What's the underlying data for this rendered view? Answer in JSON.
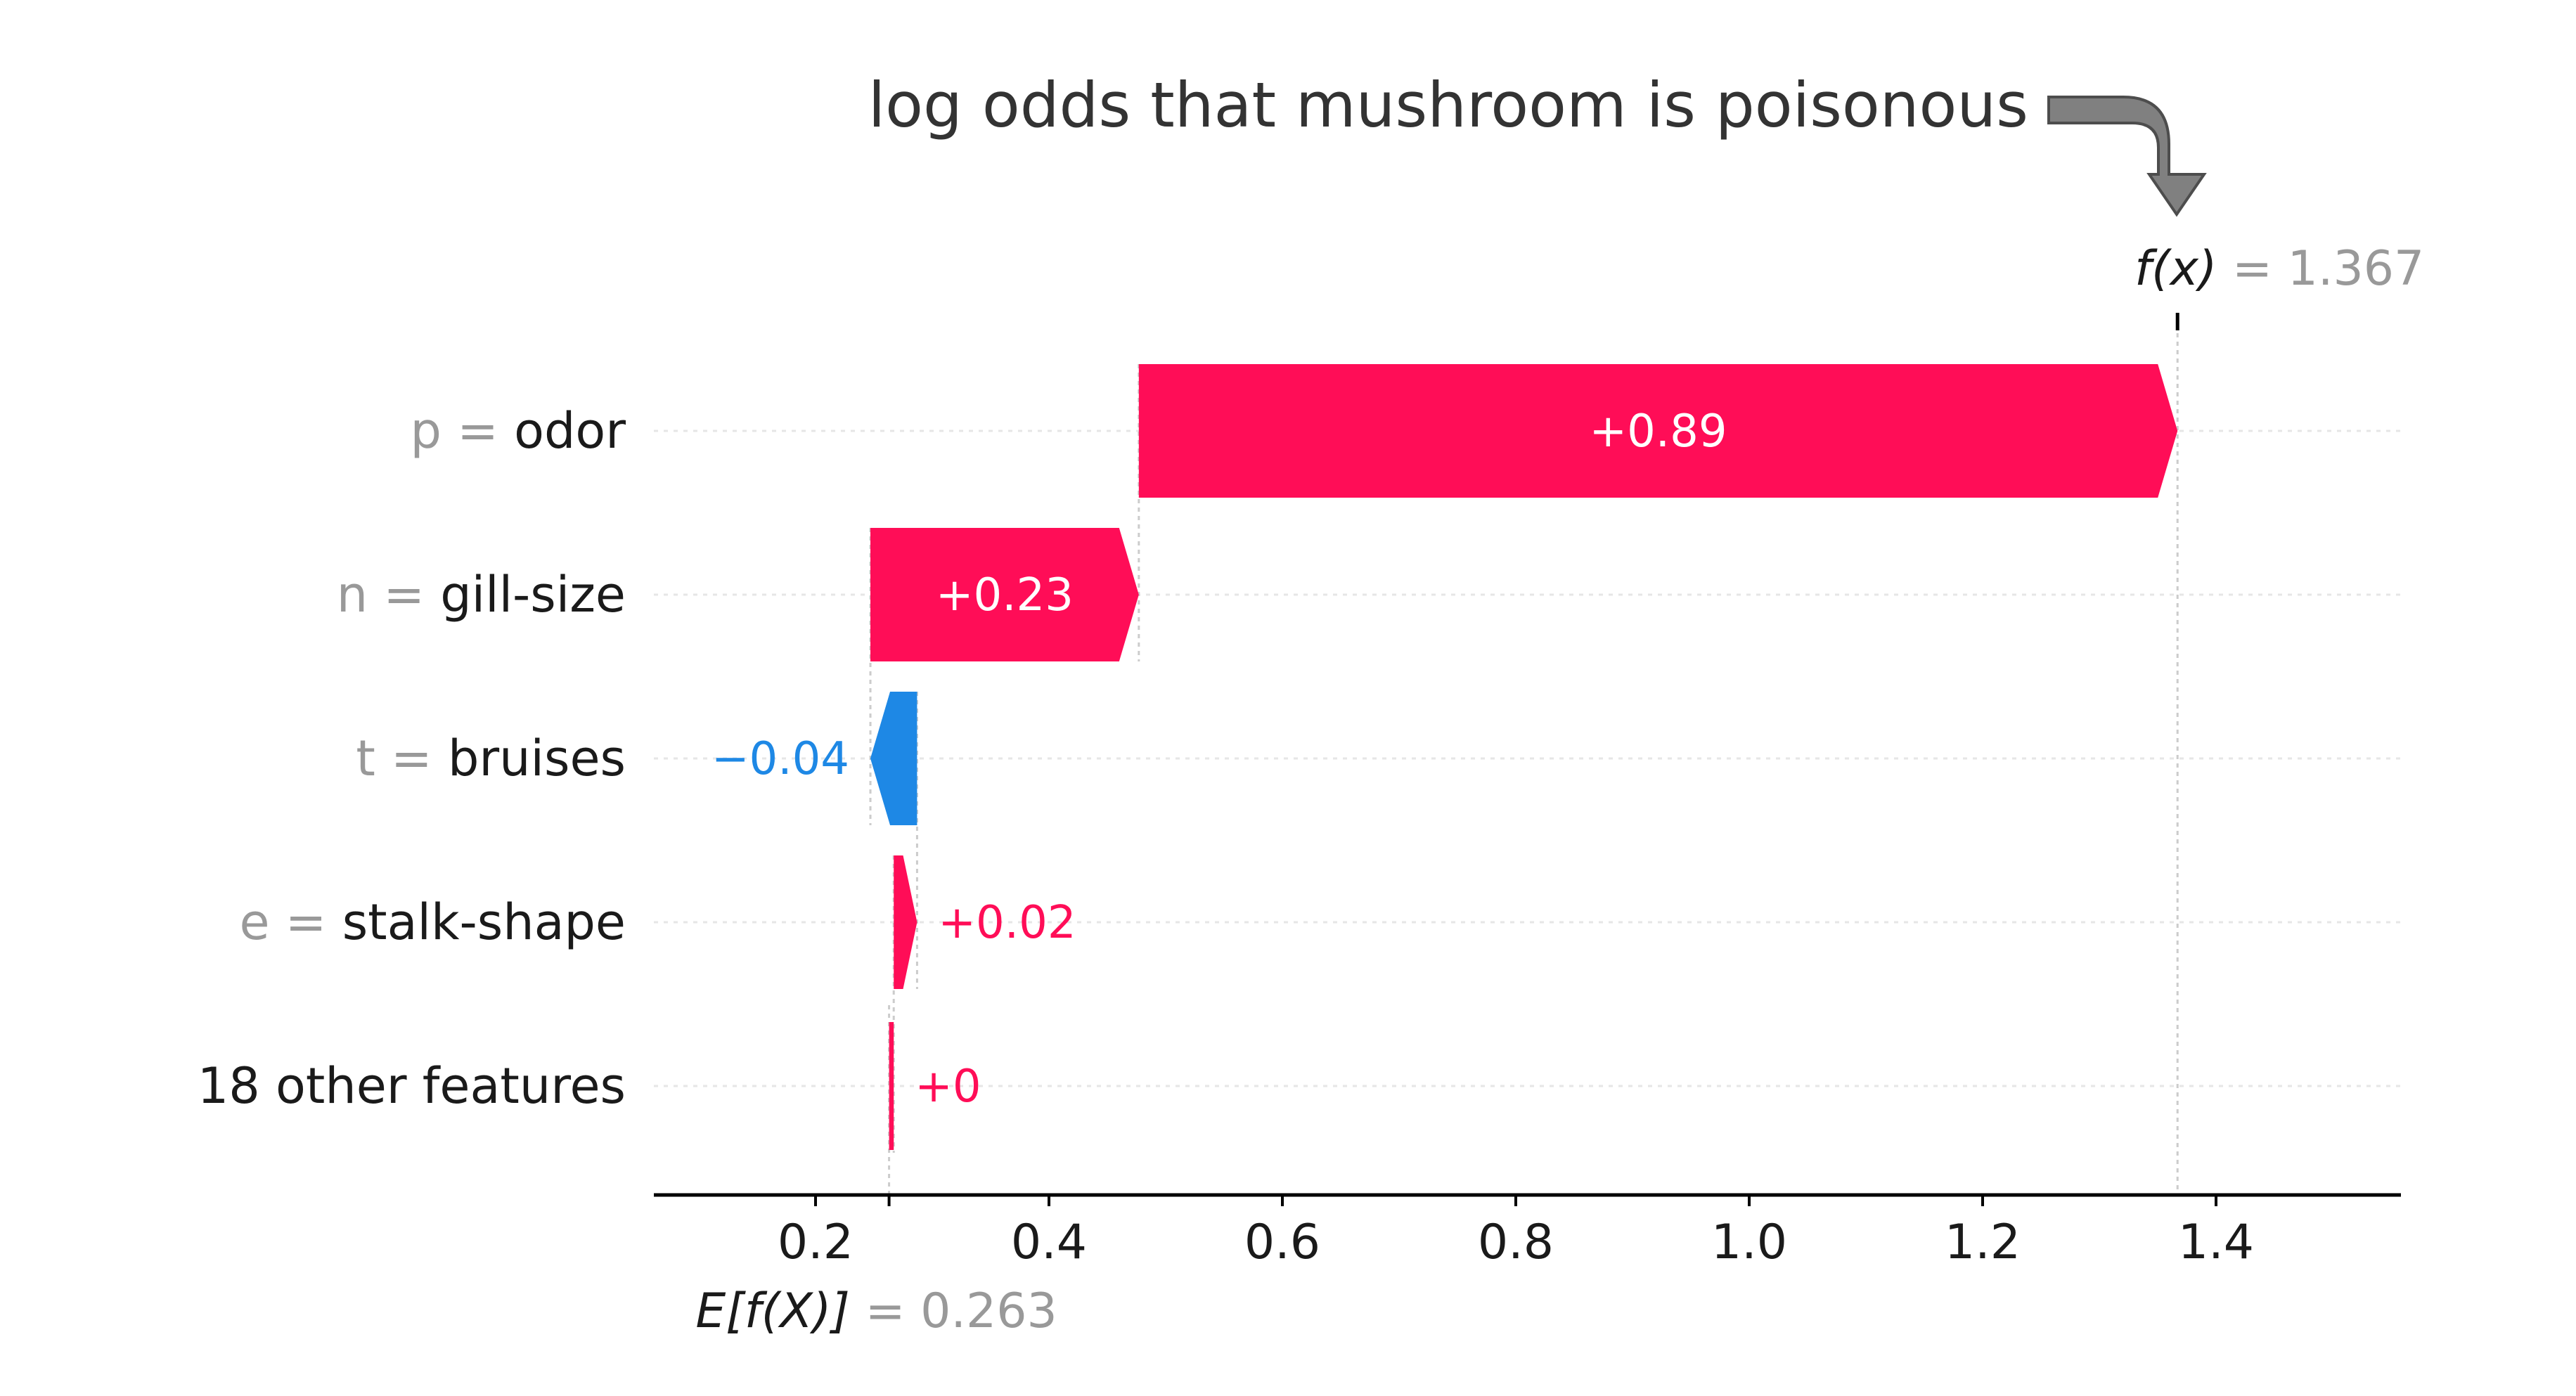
{
  "annotation": "log odds that mushroom is poisonous",
  "colors": {
    "positive": "#ff0d57",
    "negative": "#1e88e5",
    "muted_text": "#999999",
    "dark_text": "#1a1a1a",
    "axis": "#000000",
    "guide": "#cccccc",
    "arrow_fill": "#808080",
    "arrow_stroke": "#4d4d4d"
  },
  "icons": {
    "annotation_arrow": "curved-down-arrow-icon"
  },
  "chart_data": {
    "type": "waterfall",
    "base_value": 0.263,
    "base_label": "E[f(X)]",
    "base_value_text": "= 0.263",
    "output_value": 1.367,
    "output_label": "f(x)",
    "output_value_text": "= 1.367",
    "xlim": [
      0.05,
      1.56
    ],
    "x_ticks": [
      0.2,
      0.4,
      0.6,
      0.8,
      1.0,
      1.2,
      1.4
    ],
    "x_tick_labels": [
      "0.2",
      "0.4",
      "0.6",
      "0.8",
      "1.0",
      "1.2",
      "1.4"
    ],
    "grid": false,
    "features": [
      {
        "value_label": "p =",
        "name": "odor",
        "start": 0.477,
        "end": 1.367,
        "contribution": 0.89,
        "label": "+0.89",
        "sign": "positive",
        "label_inside": true
      },
      {
        "value_label": "n =",
        "name": "gill-size",
        "start": 0.247,
        "end": 0.477,
        "contribution": 0.23,
        "label": "+0.23",
        "sign": "positive",
        "label_inside": true
      },
      {
        "value_label": "t =",
        "name": "bruises",
        "start": 0.287,
        "end": 0.247,
        "contribution": -0.04,
        "label": "−0.04",
        "sign": "negative",
        "label_inside": false
      },
      {
        "value_label": "e =",
        "name": "stalk-shape",
        "start": 0.267,
        "end": 0.287,
        "contribution": 0.02,
        "label": "+0.02",
        "sign": "positive",
        "label_inside": false
      },
      {
        "value_label": "",
        "name": "18 other features",
        "start": 0.263,
        "end": 0.267,
        "contribution": 0.0,
        "label": "+0",
        "sign": "positive",
        "label_inside": false
      }
    ]
  }
}
